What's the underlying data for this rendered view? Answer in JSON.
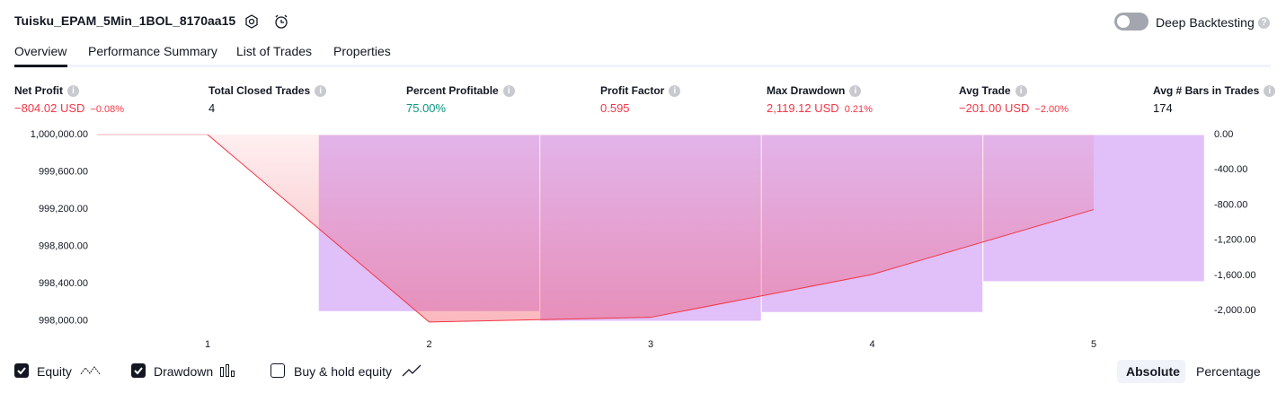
{
  "header": {
    "title": "Tuisku_EPAM_5Min_1BOL_8170aa15",
    "deep_backtesting": "Deep Backtesting"
  },
  "tabs": [
    "Overview",
    "Performance Summary",
    "List of Trades",
    "Properties"
  ],
  "metrics": [
    {
      "label": "Net Profit",
      "value": "−804.02 USD",
      "sub": "−0.08%",
      "color": "#f23645"
    },
    {
      "label": "Total Closed Trades",
      "value": "4",
      "color": "#131722"
    },
    {
      "label": "Percent Profitable",
      "value": "75.00%",
      "color": "#089981"
    },
    {
      "label": "Profit Factor",
      "value": "0.595",
      "color": "#f23645"
    },
    {
      "label": "Max Drawdown",
      "value": "2,119.12 USD",
      "sub": "0.21%",
      "color": "#f23645"
    },
    {
      "label": "Avg Trade",
      "value": "−201.00 USD",
      "sub": "−2.00%",
      "color": "#f23645"
    },
    {
      "label": "Avg # Bars in Trades",
      "value": "174",
      "color": "#131722"
    }
  ],
  "chart_data": {
    "type": "line",
    "categories": [
      "1",
      "2",
      "3",
      "4",
      "5"
    ],
    "series": [
      {
        "name": "Equity",
        "color": "#f23645",
        "values": [
          1000000,
          997990,
          998040,
          998500,
          999195.98
        ]
      },
      {
        "name": "Drawdown",
        "color": "#e1bff8",
        "axis": "y2",
        "values": [
          null,
          -2010,
          -2119.12,
          -2020,
          -1670
        ]
      }
    ],
    "ylim": [
      997960,
      1000000
    ],
    "yticks": [
      {
        "value": 1000000,
        "label": "1,000,000.00"
      },
      {
        "value": 999600,
        "label": "999,600.00"
      },
      {
        "value": 999200,
        "label": "999,200.00"
      },
      {
        "value": 998800,
        "label": "998,800.00"
      },
      {
        "value": 998400,
        "label": "998,400.00"
      },
      {
        "value": 998000,
        "label": "998,000.00"
      }
    ],
    "y2lim": [
      -2160,
      0
    ],
    "y2ticks": [
      {
        "value": 0,
        "label": "0.00"
      },
      {
        "value": -400,
        "label": "-400.00"
      },
      {
        "value": -800,
        "label": "-800.00"
      },
      {
        "value": -1200,
        "label": "-1,200.00"
      },
      {
        "value": -1600,
        "label": "-1,600.00"
      },
      {
        "value": -2000,
        "label": "-2,000.00"
      }
    ]
  },
  "controls": {
    "equity": "Equity",
    "drawdown": "Drawdown",
    "buy_hold": "Buy & hold equity",
    "absolute": "Absolute",
    "percentage": "Percentage"
  }
}
